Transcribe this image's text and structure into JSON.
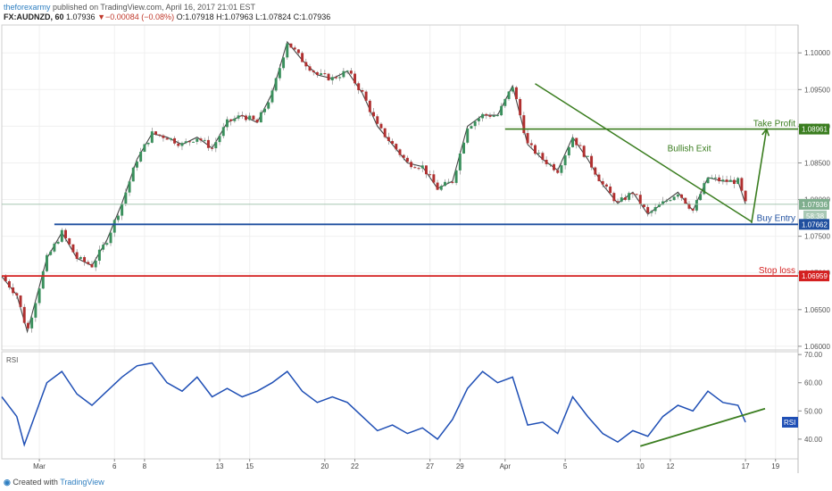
{
  "header": {
    "user": "theforexarmy",
    "published": " published on TradingView.com, April 16, 2017 21:01 EST",
    "symbol": "FX:AUDNZD, 60",
    "last": "1.07936",
    "change": "▼−0.00084 (−0.08%)",
    "ohlc": "O:1.07918 H:1.07963 L:1.07824 C:1.07936"
  },
  "footer": {
    "created": "Created with",
    "brand": "TradingView"
  },
  "colors": {
    "up": "#3a8f5c",
    "down": "#b03030",
    "rsi": "#1f4fb5",
    "green": "#3a7d1f",
    "blue": "#1f4f9f",
    "red": "#d42020"
  },
  "chart_data": {
    "type": "line",
    "symbol": "FX:AUDNZD",
    "timeframe": "60",
    "x_ticks": [
      "Mar",
      "6",
      "8",
      "13",
      "15",
      "20",
      "22",
      "27",
      "29",
      "Apr",
      "5",
      "10",
      "12",
      "17",
      "19"
    ],
    "x_tick_index": [
      0,
      5,
      7,
      12,
      14,
      19,
      21,
      26,
      28,
      31,
      35,
      40,
      42,
      47,
      49
    ],
    "day_span": [
      -2.5,
      50.5
    ],
    "y_ticks": [
      1.06,
      1.065,
      1.07,
      1.075,
      1.08,
      1.085,
      1.09,
      1.095,
      1.1
    ],
    "y_tick_labels": [
      "1.06000",
      "1.06500",
      "1.07000",
      "1.07500",
      "1.08000",
      "1.08500",
      "1.09000",
      "1.09500",
      "1.10000"
    ],
    "ylim": [
      1.0595,
      1.1038
    ],
    "price_path": [
      [
        -2.5,
        1.0695
      ],
      [
        -1.5,
        1.067
      ],
      [
        -0.8,
        1.062
      ],
      [
        0.5,
        1.072
      ],
      [
        1.5,
        1.0755
      ],
      [
        2.5,
        1.072
      ],
      [
        3.5,
        1.071
      ],
      [
        4.5,
        1.0745
      ],
      [
        5.5,
        1.0795
      ],
      [
        6.5,
        1.0855
      ],
      [
        7.5,
        1.089
      ],
      [
        8.5,
        1.0885
      ],
      [
        9.5,
        1.0875
      ],
      [
        10.5,
        1.0885
      ],
      [
        11.5,
        1.087
      ],
      [
        12.5,
        1.0905
      ],
      [
        13.5,
        1.0915
      ],
      [
        14.5,
        1.0905
      ],
      [
        15.5,
        1.0945
      ],
      [
        16.5,
        1.1015
      ],
      [
        17.5,
        1.099
      ],
      [
        18.5,
        1.097
      ],
      [
        19.5,
        1.0965
      ],
      [
        20.5,
        1.0975
      ],
      [
        21.5,
        1.0945
      ],
      [
        22.5,
        1.09
      ],
      [
        23.5,
        1.0875
      ],
      [
        24.5,
        1.085
      ],
      [
        25.5,
        1.0845
      ],
      [
        26.5,
        1.0815
      ],
      [
        27.5,
        1.0825
      ],
      [
        28.5,
        1.09
      ],
      [
        29.5,
        1.0915
      ],
      [
        30.5,
        1.0915
      ],
      [
        31.5,
        1.0955
      ],
      [
        32.5,
        1.0875
      ],
      [
        33.5,
        1.0855
      ],
      [
        34.5,
        1.084
      ],
      [
        35.5,
        1.0885
      ],
      [
        36.5,
        1.0855
      ],
      [
        37.5,
        1.082
      ],
      [
        38.5,
        1.0795
      ],
      [
        39.5,
        1.081
      ],
      [
        40.5,
        1.078
      ],
      [
        41.5,
        1.0795
      ],
      [
        42.5,
        1.081
      ],
      [
        43.5,
        1.0785
      ],
      [
        44.5,
        1.083
      ],
      [
        45.5,
        1.0825
      ],
      [
        46.5,
        1.0825
      ],
      [
        47.0,
        1.0794
      ]
    ],
    "annotations": {
      "take_profit": {
        "label": "Take Profit",
        "price": 1.08961,
        "price_label": "1.08961",
        "from_day": 31.0
      },
      "buy_entry": {
        "label": "Buy Entry",
        "price": 1.07662,
        "price_label": "1.07662",
        "from_day": 1.0
      },
      "stop_loss": {
        "label": "Stop loss",
        "price": 1.06959,
        "price_label": "1.06959",
        "from_day": -2.5
      },
      "last_price": {
        "price": 1.07936,
        "price_label": "1.07936"
      },
      "countdown": "58:38",
      "bullish_exit": {
        "label": "Bullish Exit"
      },
      "trendline": {
        "from": [
          33.0,
          1.0958
        ],
        "to": [
          47.4,
          1.077
        ]
      },
      "arrow": {
        "from": [
          47.4,
          1.0768
        ],
        "to": [
          48.4,
          1.0896
        ]
      }
    },
    "rsi": {
      "label": "RSI",
      "y_ticks": [
        40,
        50,
        60,
        70
      ],
      "y_tick_labels": [
        "40.00",
        "50.00",
        "60.00",
        "70.00"
      ],
      "ylim": [
        33,
        71
      ],
      "path": [
        [
          -2.5,
          55
        ],
        [
          -1.5,
          48
        ],
        [
          -1.0,
          38
        ],
        [
          0.5,
          60
        ],
        [
          1.5,
          64
        ],
        [
          2.5,
          56
        ],
        [
          3.5,
          52
        ],
        [
          4.5,
          57
        ],
        [
          5.5,
          62
        ],
        [
          6.5,
          66
        ],
        [
          7.5,
          67
        ],
        [
          8.5,
          60
        ],
        [
          9.5,
          57
        ],
        [
          10.5,
          62
        ],
        [
          11.5,
          55
        ],
        [
          12.5,
          58
        ],
        [
          13.5,
          55
        ],
        [
          14.5,
          57
        ],
        [
          15.5,
          60
        ],
        [
          16.5,
          64
        ],
        [
          17.5,
          57
        ],
        [
          18.5,
          53
        ],
        [
          19.5,
          55
        ],
        [
          20.5,
          53
        ],
        [
          21.5,
          48
        ],
        [
          22.5,
          43
        ],
        [
          23.5,
          45
        ],
        [
          24.5,
          42
        ],
        [
          25.5,
          44
        ],
        [
          26.5,
          40
        ],
        [
          27.5,
          47
        ],
        [
          28.5,
          58
        ],
        [
          29.5,
          64
        ],
        [
          30.5,
          60
        ],
        [
          31.5,
          62
        ],
        [
          32.5,
          45
        ],
        [
          33.5,
          46
        ],
        [
          34.5,
          42
        ],
        [
          35.5,
          55
        ],
        [
          36.5,
          48
        ],
        [
          37.5,
          42
        ],
        [
          38.5,
          39
        ],
        [
          39.5,
          43
        ],
        [
          40.5,
          41
        ],
        [
          41.5,
          48
        ],
        [
          42.5,
          52
        ],
        [
          43.5,
          50
        ],
        [
          44.5,
          57
        ],
        [
          45.5,
          53
        ],
        [
          46.5,
          52
        ],
        [
          47.0,
          46
        ]
      ],
      "trendline": {
        "from": [
          40.0,
          37.5
        ],
        "to": [
          48.3,
          50.8
        ]
      },
      "last_label": "RSI"
    }
  }
}
